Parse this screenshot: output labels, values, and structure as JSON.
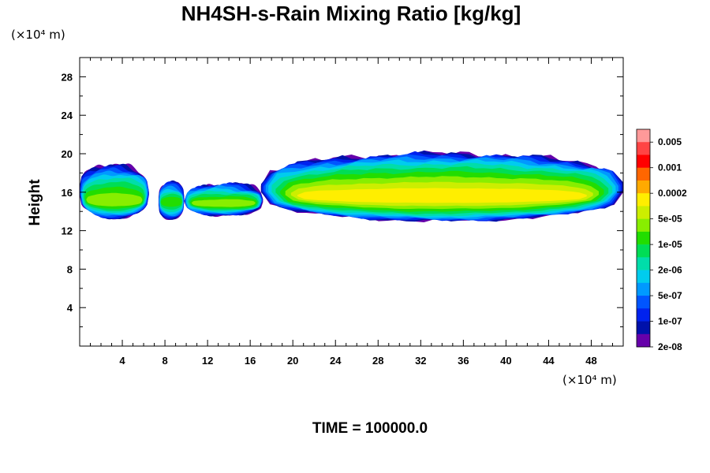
{
  "chart_data": {
    "type": "heatmap",
    "title": "NH4SH-s-Rain Mixing Ratio [kg/kg]",
    "ylabel": "Height",
    "x_unit": "(×10⁴ m)",
    "y_unit": "(×10⁴ m)",
    "xlim": [
      0,
      51
    ],
    "ylim": [
      0,
      30
    ],
    "x_ticks": [
      4,
      8,
      12,
      16,
      20,
      24,
      28,
      32,
      36,
      40,
      44,
      48
    ],
    "x_tick_labels": [
      "4",
      "8",
      "12",
      "16",
      "20",
      "24",
      "28",
      "32",
      "36",
      "40",
      "44",
      "48"
    ],
    "y_ticks": [
      4,
      8,
      12,
      16,
      20,
      24,
      28
    ],
    "y_tick_labels": [
      "4",
      "8",
      "12",
      "16",
      "20",
      "24",
      "28"
    ],
    "colorbar": {
      "labels": [
        "0.005",
        "0.001",
        "0.0002",
        "5e-05",
        "1e-05",
        "2e-06",
        "5e-07",
        "1e-07",
        "2e-08"
      ],
      "colors": [
        "#ff9999",
        "#ff4444",
        "#ff0000",
        "#ff6600",
        "#ffaa00",
        "#ffee00",
        "#ccee00",
        "#88ee00",
        "#22dd00",
        "#00dd55",
        "#00ddaa",
        "#00ccee",
        "#0099ff",
        "#0055ff",
        "#0022ee",
        "#0011aa",
        "#6600aa"
      ]
    },
    "cloud_bands": [
      {
        "x0": 0,
        "x1": 6.5,
        "y0": 13.3,
        "y1": 18.8,
        "core_y": 15.0,
        "core_level": 10
      },
      {
        "x0": 7.4,
        "x1": 9.8,
        "y0": 13.2,
        "y1": 17.0,
        "core_y": 15.0,
        "core_level": 9
      },
      {
        "x0": 9.8,
        "x1": 17.2,
        "y0": 13.6,
        "y1": 16.8,
        "core_y": 14.8,
        "core_level": 10
      },
      {
        "x0": 17.0,
        "x1": 51,
        "y0": 13.0,
        "y1": 20.0,
        "core_y": 15.5,
        "core_level": 12
      }
    ],
    "annotation": "TIME = 100000.0"
  }
}
